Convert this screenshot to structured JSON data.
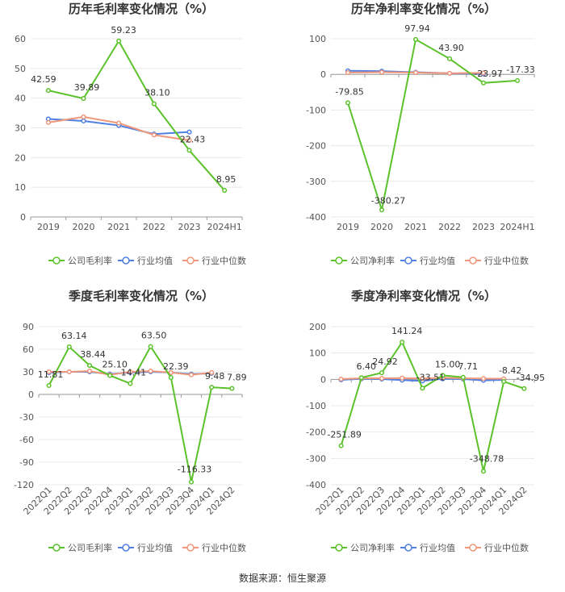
{
  "source": "数据来源：恒生聚源",
  "legend_labels": [
    "公司毛利率",
    "行业均值",
    "行业中位数"
  ],
  "colors": {
    "company": "#5bc22b",
    "industry_avg": "#4f7fe0",
    "industry_median": "#f0967a",
    "grid": "#e8e8e8",
    "axis": "#999999",
    "text": "#555555"
  },
  "chart_data": [
    {
      "type": "line",
      "title": "历年毛利率变化情况（%）",
      "categories": [
        "2019",
        "2020",
        "2021",
        "2022",
        "2023",
        "2024H1"
      ],
      "ylim": [
        0,
        60
      ],
      "yticks": [
        0,
        10,
        20,
        30,
        40,
        50,
        60
      ],
      "grid": true,
      "legend_position": "bottom",
      "legend": [
        "公司毛利率",
        "行业均值",
        "行业中位数"
      ],
      "series": [
        {
          "name": "公司毛利率",
          "values": [
            42.59,
            39.89,
            59.23,
            38.1,
            22.43,
            8.95
          ],
          "labels": [
            "42.59",
            "39.89",
            "59.23",
            "38.10",
            "22.43",
            "8.95"
          ]
        },
        {
          "name": "行业均值",
          "values": [
            33.0,
            32.3,
            30.8,
            27.9,
            28.6,
            null
          ]
        },
        {
          "name": "行业中位数",
          "values": [
            31.8,
            33.7,
            31.6,
            27.6,
            25.8,
            null
          ]
        }
      ]
    },
    {
      "type": "line",
      "title": "历年净利率变化情况（%）",
      "categories": [
        "2019",
        "2020",
        "2021",
        "2022",
        "2023",
        "2024H1"
      ],
      "ylim": [
        -400,
        100
      ],
      "yticks": [
        -400,
        -300,
        -200,
        -100,
        0,
        100
      ],
      "grid": true,
      "legend_position": "bottom",
      "legend": [
        "公司净利率",
        "行业均值",
        "行业中位数"
      ],
      "series": [
        {
          "name": "公司净利率",
          "values": [
            -79.85,
            -380.27,
            97.94,
            43.9,
            -23.97,
            -17.33
          ],
          "labels": [
            "-79.85",
            "-380.27",
            "97.94",
            "43.90",
            "-23.97",
            "-17.33"
          ]
        },
        {
          "name": "行业均值",
          "values": [
            10,
            9,
            6,
            3,
            1,
            null
          ]
        },
        {
          "name": "行业中位数",
          "values": [
            5,
            6,
            5,
            3,
            4,
            null
          ]
        }
      ]
    },
    {
      "type": "line",
      "title": "季度毛利率变化情况（%）",
      "categories": [
        "2022Q1",
        "2022Q2",
        "2022Q3",
        "2022Q4",
        "2023Q1",
        "2023Q2",
        "2023Q3",
        "2023Q4",
        "2024Q1",
        "2024Q2"
      ],
      "ylim": [
        -120,
        90
      ],
      "yticks": [
        -120,
        -90,
        -60,
        -30,
        0,
        30,
        60,
        90
      ],
      "grid": true,
      "legend_position": "bottom",
      "legend": [
        "公司毛利率",
        "行业均值",
        "行业中位数"
      ],
      "series": [
        {
          "name": "公司毛利率",
          "values": [
            11.81,
            63.14,
            38.44,
            25.1,
            14.41,
            63.5,
            22.39,
            -116.33,
            9.48,
            7.89
          ],
          "labels": [
            "11.81",
            "63.14",
            "38.44",
            "25.10",
            "14.41",
            "63.50",
            "22.39",
            "-116.33",
            "9.48",
            "7.89"
          ]
        },
        {
          "name": "行业均值",
          "values": [
            29,
            30,
            30,
            27,
            29,
            30,
            29,
            27,
            28,
            null
          ]
        },
        {
          "name": "行业中位数",
          "values": [
            30,
            30,
            31,
            26,
            30,
            31,
            29,
            26,
            29,
            null
          ]
        }
      ]
    },
    {
      "type": "line",
      "title": "季度净利率变化情况（%）",
      "categories": [
        "2022Q1",
        "2022Q2",
        "2022Q3",
        "2022Q4",
        "2023Q1",
        "2023Q2",
        "2023Q3",
        "2023Q4",
        "2024Q1",
        "2024Q2"
      ],
      "ylim": [
        -400,
        200
      ],
      "yticks": [
        -400,
        -300,
        -200,
        -100,
        0,
        100,
        200
      ],
      "grid": true,
      "legend_position": "bottom",
      "legend": [
        "公司净利率",
        "行业均值",
        "行业中位数"
      ],
      "series": [
        {
          "name": "公司净利率",
          "values": [
            -251.89,
            6.4,
            24.92,
            141.24,
            -33.51,
            15.0,
            7.71,
            -348.78,
            -8.42,
            -34.95
          ],
          "labels": [
            "-251.89",
            "6.40",
            "24.92",
            "141.24",
            "-33.51",
            "15.00",
            "7.71",
            "-348.78",
            "-8.42",
            "-34.95"
          ]
        },
        {
          "name": "行业均值",
          "values": [
            -2,
            2,
            1,
            -3,
            -6,
            2,
            1,
            -4,
            -2,
            null
          ]
        },
        {
          "name": "行业中位数",
          "values": [
            1,
            4,
            4,
            5,
            3,
            6,
            4,
            3,
            2,
            null
          ]
        }
      ]
    }
  ]
}
